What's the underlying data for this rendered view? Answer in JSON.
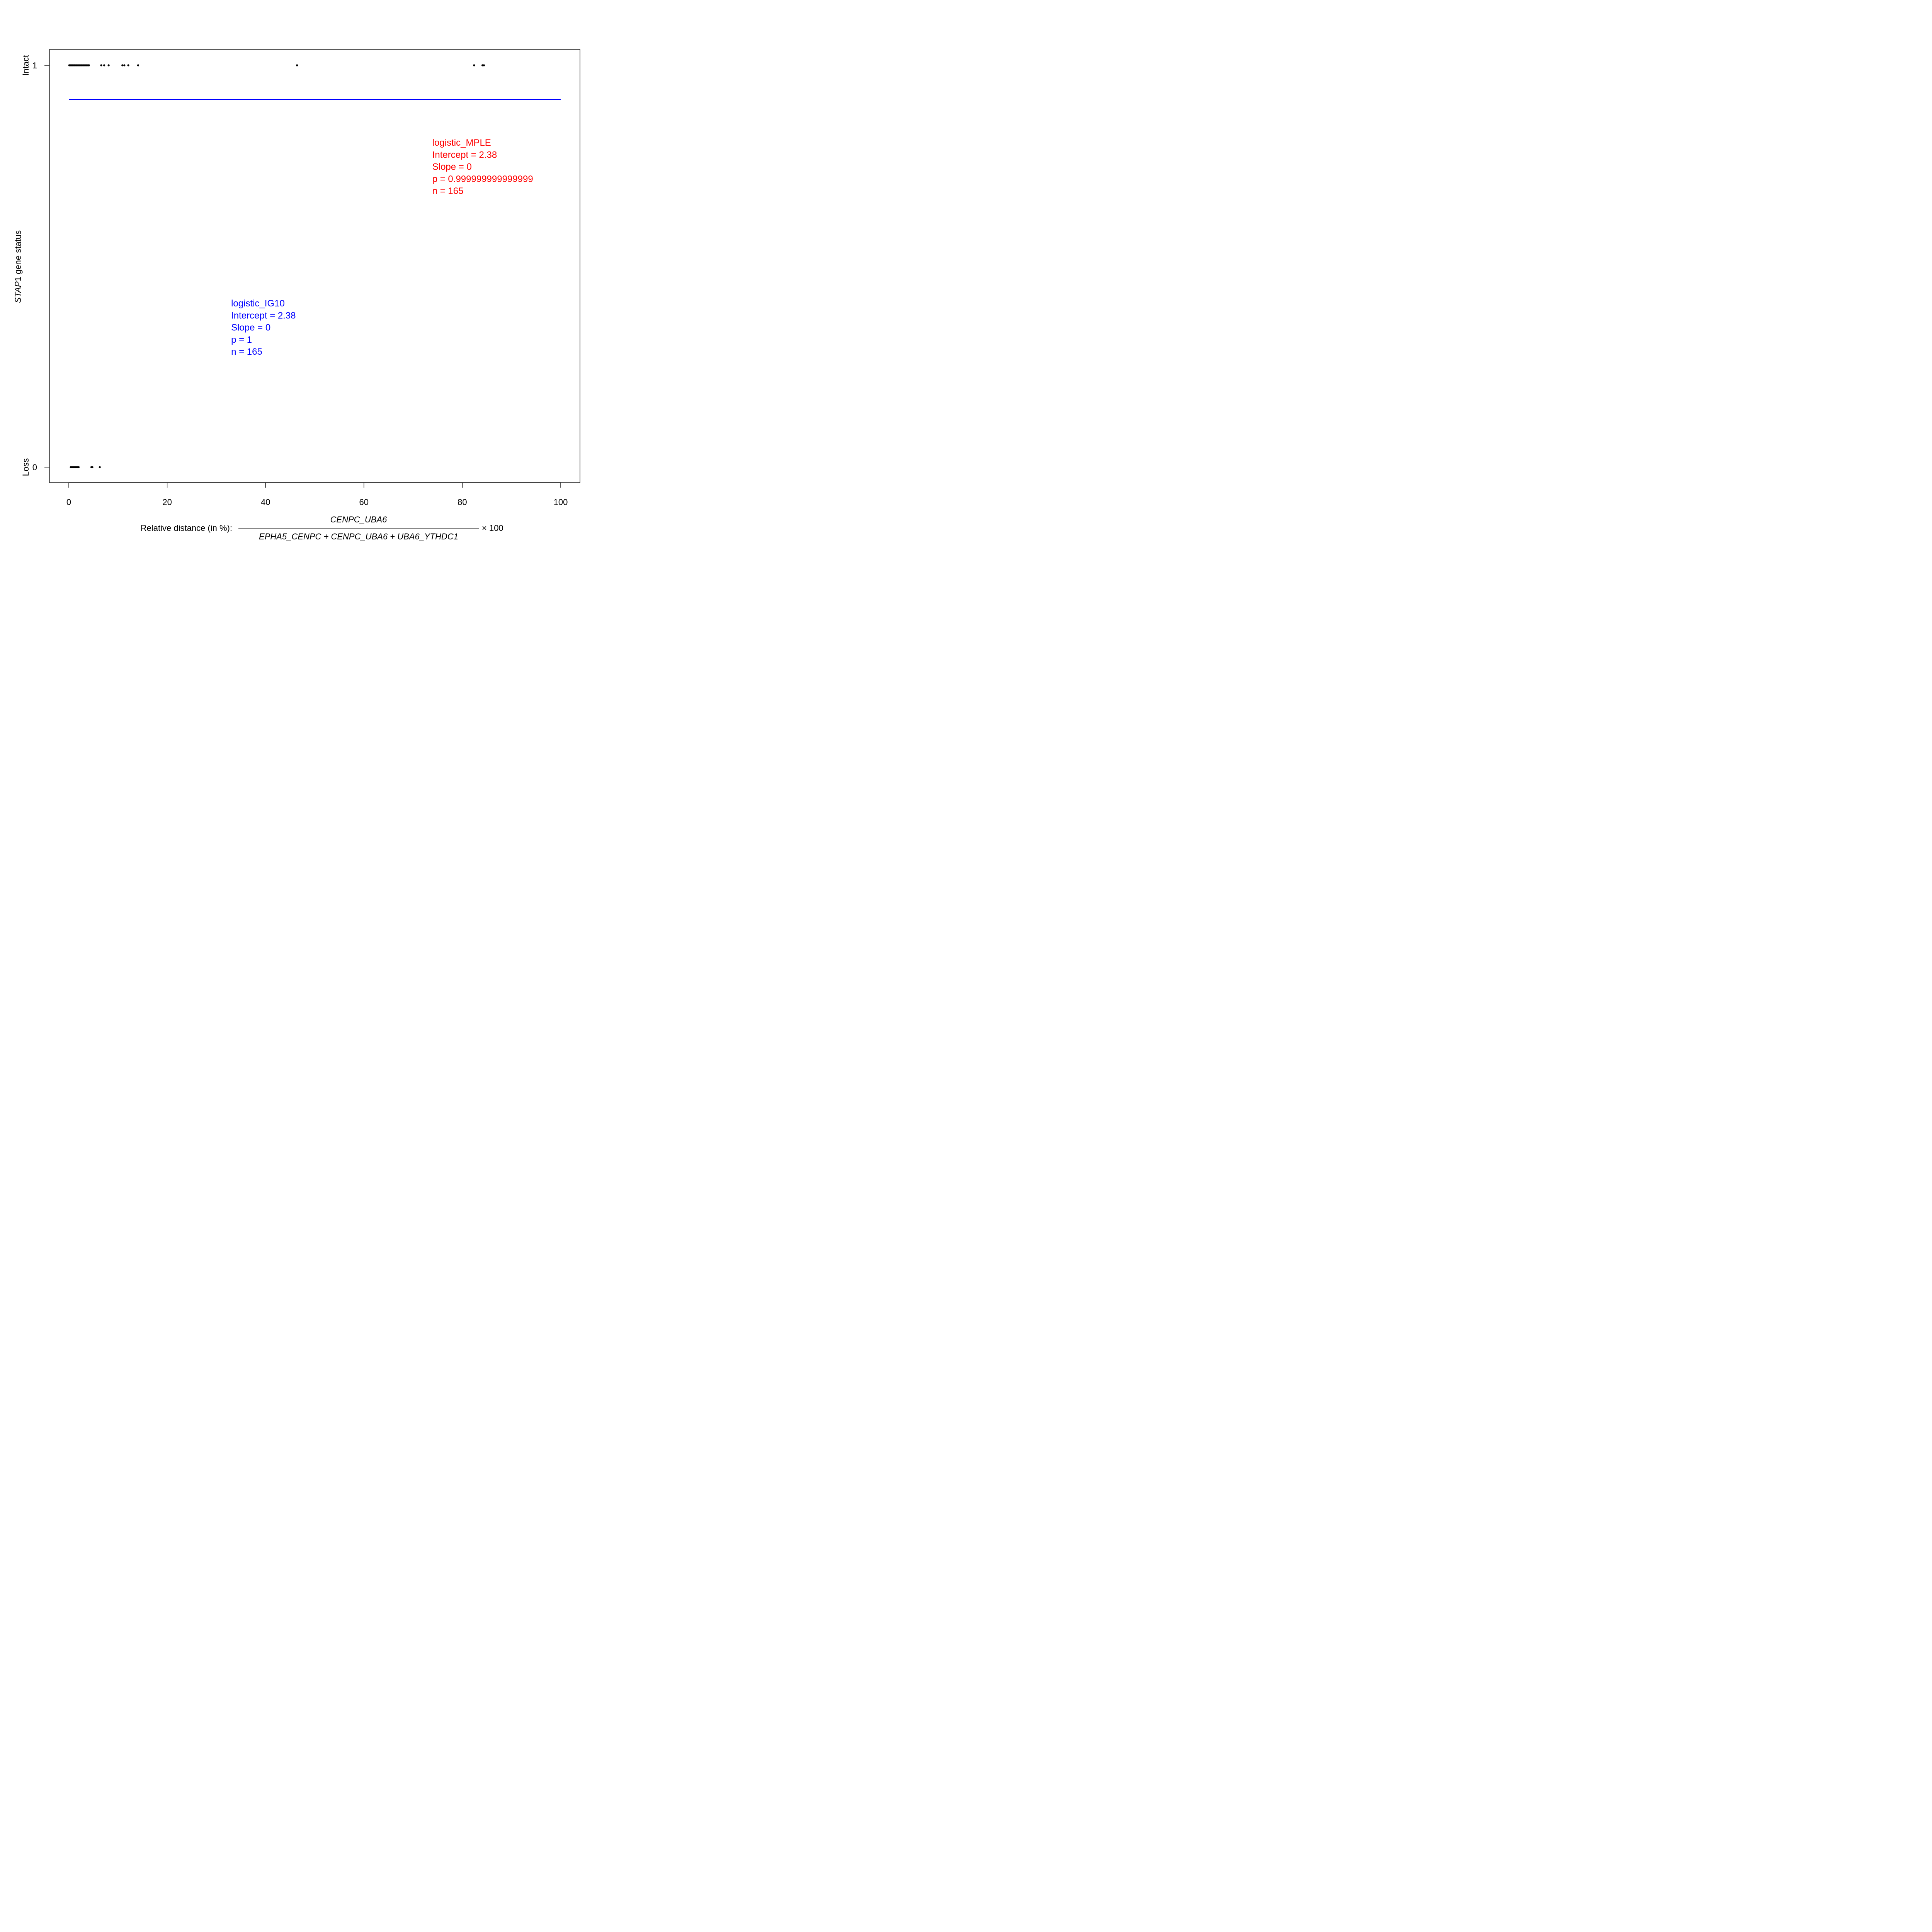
{
  "chart_data": {
    "type": "scatter",
    "xlim": [
      0,
      100
    ],
    "ylim": [
      0,
      1
    ],
    "xticks": [
      0,
      20,
      40,
      60,
      80,
      100
    ],
    "xtick_labels": [
      "0",
      "20",
      "40",
      "60",
      "80",
      "100"
    ],
    "yticks": [
      0,
      1
    ],
    "ytick_labels": [
      "0",
      "1"
    ],
    "ylabel_italic": "STAP",
    "ylabel_rest": "1 gene status",
    "ylabel_top": "Intact",
    "ylabel_bottom": "Loss",
    "xlabel_prefix": "Relative distance (in %):",
    "xlabel_numerator": "CENPC_UBA6",
    "xlabel_denominator": "EPHA5_CENPC + CENPC_UBA6 + UBA6_YTHDC1",
    "xlabel_suffix": "× 100",
    "grid": false,
    "points_intact_x": [
      0.1,
      0.3,
      0.5,
      0.7,
      0.9,
      1.1,
      1.3,
      1.5,
      1.7,
      1.9,
      2.1,
      2.3,
      2.5,
      2.7,
      2.9,
      3.1,
      3.3,
      3.5,
      3.7,
      3.9,
      4.1,
      6.6,
      7.2,
      8.1,
      10.9,
      11.3,
      12.1,
      14.1,
      46.4,
      82.4,
      84.1,
      84.4
    ],
    "points_loss_x": [
      0.4,
      0.6,
      0.8,
      1.0,
      1.2,
      1.4,
      1.6,
      1.8,
      2.0,
      4.6,
      4.8,
      6.3
    ],
    "fit_line": {
      "x": [
        0,
        100
      ],
      "y": [
        0.915,
        0.915
      ],
      "color": "#0000ff"
    },
    "annotations": [
      {
        "color": "#ff0000",
        "x": 73.9,
        "y": 0.8,
        "lines": [
          "logistic_MPLE",
          "Intercept =  2.38",
          "Slope =  0",
          "p =  0.999999999999999",
          "n =  165"
        ]
      },
      {
        "color": "#0000ff",
        "x": 33.0,
        "y": 0.4,
        "lines": [
          "logistic_IG10",
          "Intercept =  2.38",
          "Slope =  0",
          "p =  1",
          "n =  165"
        ]
      }
    ]
  }
}
